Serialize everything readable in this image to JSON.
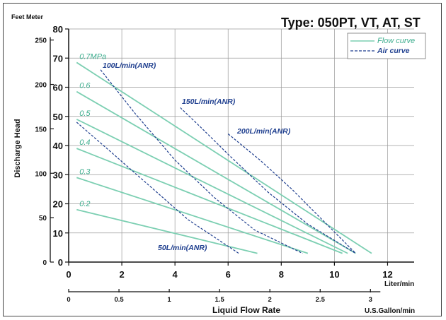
{
  "chart_data": {
    "type": "line",
    "title": "Type: 050PT, VT, AT, ST",
    "xlabel": "Liquid Flow Rate",
    "ylabel": "Discharge Head",
    "left_unit": "Feet Meter",
    "x_unit_top": "Liter/min",
    "x_unit_bottom": "U.S.Gallon/min",
    "xlim": [
      0,
      13
    ],
    "ylim": [
      0,
      80
    ],
    "x_ticks": [
      0,
      2,
      4,
      6,
      8,
      10,
      12
    ],
    "y_ticks": [
      0,
      10,
      20,
      30,
      40,
      50,
      60,
      70,
      80
    ],
    "feet_ticks": [
      {
        "label": "0",
        "m": 0
      },
      {
        "label": "50",
        "m": 15.24
      },
      {
        "label": "100",
        "m": 30.48
      },
      {
        "label": "150",
        "m": 45.72
      },
      {
        "label": "200",
        "m": 60.96
      },
      {
        "label": "250",
        "m": 76.2
      }
    ],
    "gallon_ticks": [
      {
        "label": "0",
        "lpm": 0
      },
      {
        "label": "0.5",
        "lpm": 1.893
      },
      {
        "label": "1",
        "lpm": 3.785
      },
      {
        "label": "1.5",
        "lpm": 5.678
      },
      {
        "label": "2",
        "lpm": 7.571
      },
      {
        "label": "2.5",
        "lpm": 9.464
      },
      {
        "label": "3",
        "lpm": 11.356
      }
    ],
    "grid": true,
    "legend": {
      "placement": "top-right",
      "flow": "Flow curve",
      "air": "Air curve"
    },
    "colors": {
      "flow": "#7ccfb2",
      "air": "#1f3f8f"
    },
    "flow_curves": [
      {
        "name": "0.7MPa",
        "points": [
          [
            0.3,
            68.5
          ],
          [
            11.4,
            3
          ]
        ]
      },
      {
        "name": "0.6",
        "points": [
          [
            0.3,
            58.5
          ],
          [
            10.8,
            3
          ]
        ]
      },
      {
        "name": "0.5",
        "points": [
          [
            0.3,
            49
          ],
          [
            10.5,
            3
          ]
        ]
      },
      {
        "name": "0.4",
        "points": [
          [
            0.3,
            39
          ],
          [
            10.3,
            3
          ]
        ]
      },
      {
        "name": "0.3",
        "points": [
          [
            0.3,
            29
          ],
          [
            9,
            3
          ]
        ]
      },
      {
        "name": "0.2",
        "points": [
          [
            0.3,
            18
          ],
          [
            7.1,
            3
          ]
        ]
      }
    ],
    "air_curves": [
      {
        "name": "50L/min(ANR)",
        "points": [
          [
            0.3,
            48
          ],
          [
            1.5,
            38.5
          ],
          [
            3,
            26.5
          ],
          [
            4.5,
            14.5
          ],
          [
            6.4,
            3
          ]
        ]
      },
      {
        "name": "100L/min(ANR)",
        "points": [
          [
            1.2,
            66
          ],
          [
            2.5,
            51
          ],
          [
            4,
            35
          ],
          [
            5.5,
            22
          ],
          [
            7,
            11
          ],
          [
            8.8,
            3
          ]
        ]
      },
      {
        "name": "150L/min(ANR)",
        "points": [
          [
            4.2,
            53
          ],
          [
            5,
            46
          ],
          [
            6,
            37
          ],
          [
            7.5,
            24
          ],
          [
            9,
            13
          ],
          [
            10.8,
            3
          ]
        ]
      },
      {
        "name": "200L/min(ANR)",
        "points": [
          [
            6,
            44
          ],
          [
            7.2,
            35
          ],
          [
            8.4,
            25
          ],
          [
            9.6,
            14
          ],
          [
            10.8,
            3
          ]
        ]
      }
    ],
    "pressure_labels": [
      "0.7MPa",
      "0.6",
      "0.5",
      "0.4",
      "0.3",
      "0.2"
    ]
  }
}
